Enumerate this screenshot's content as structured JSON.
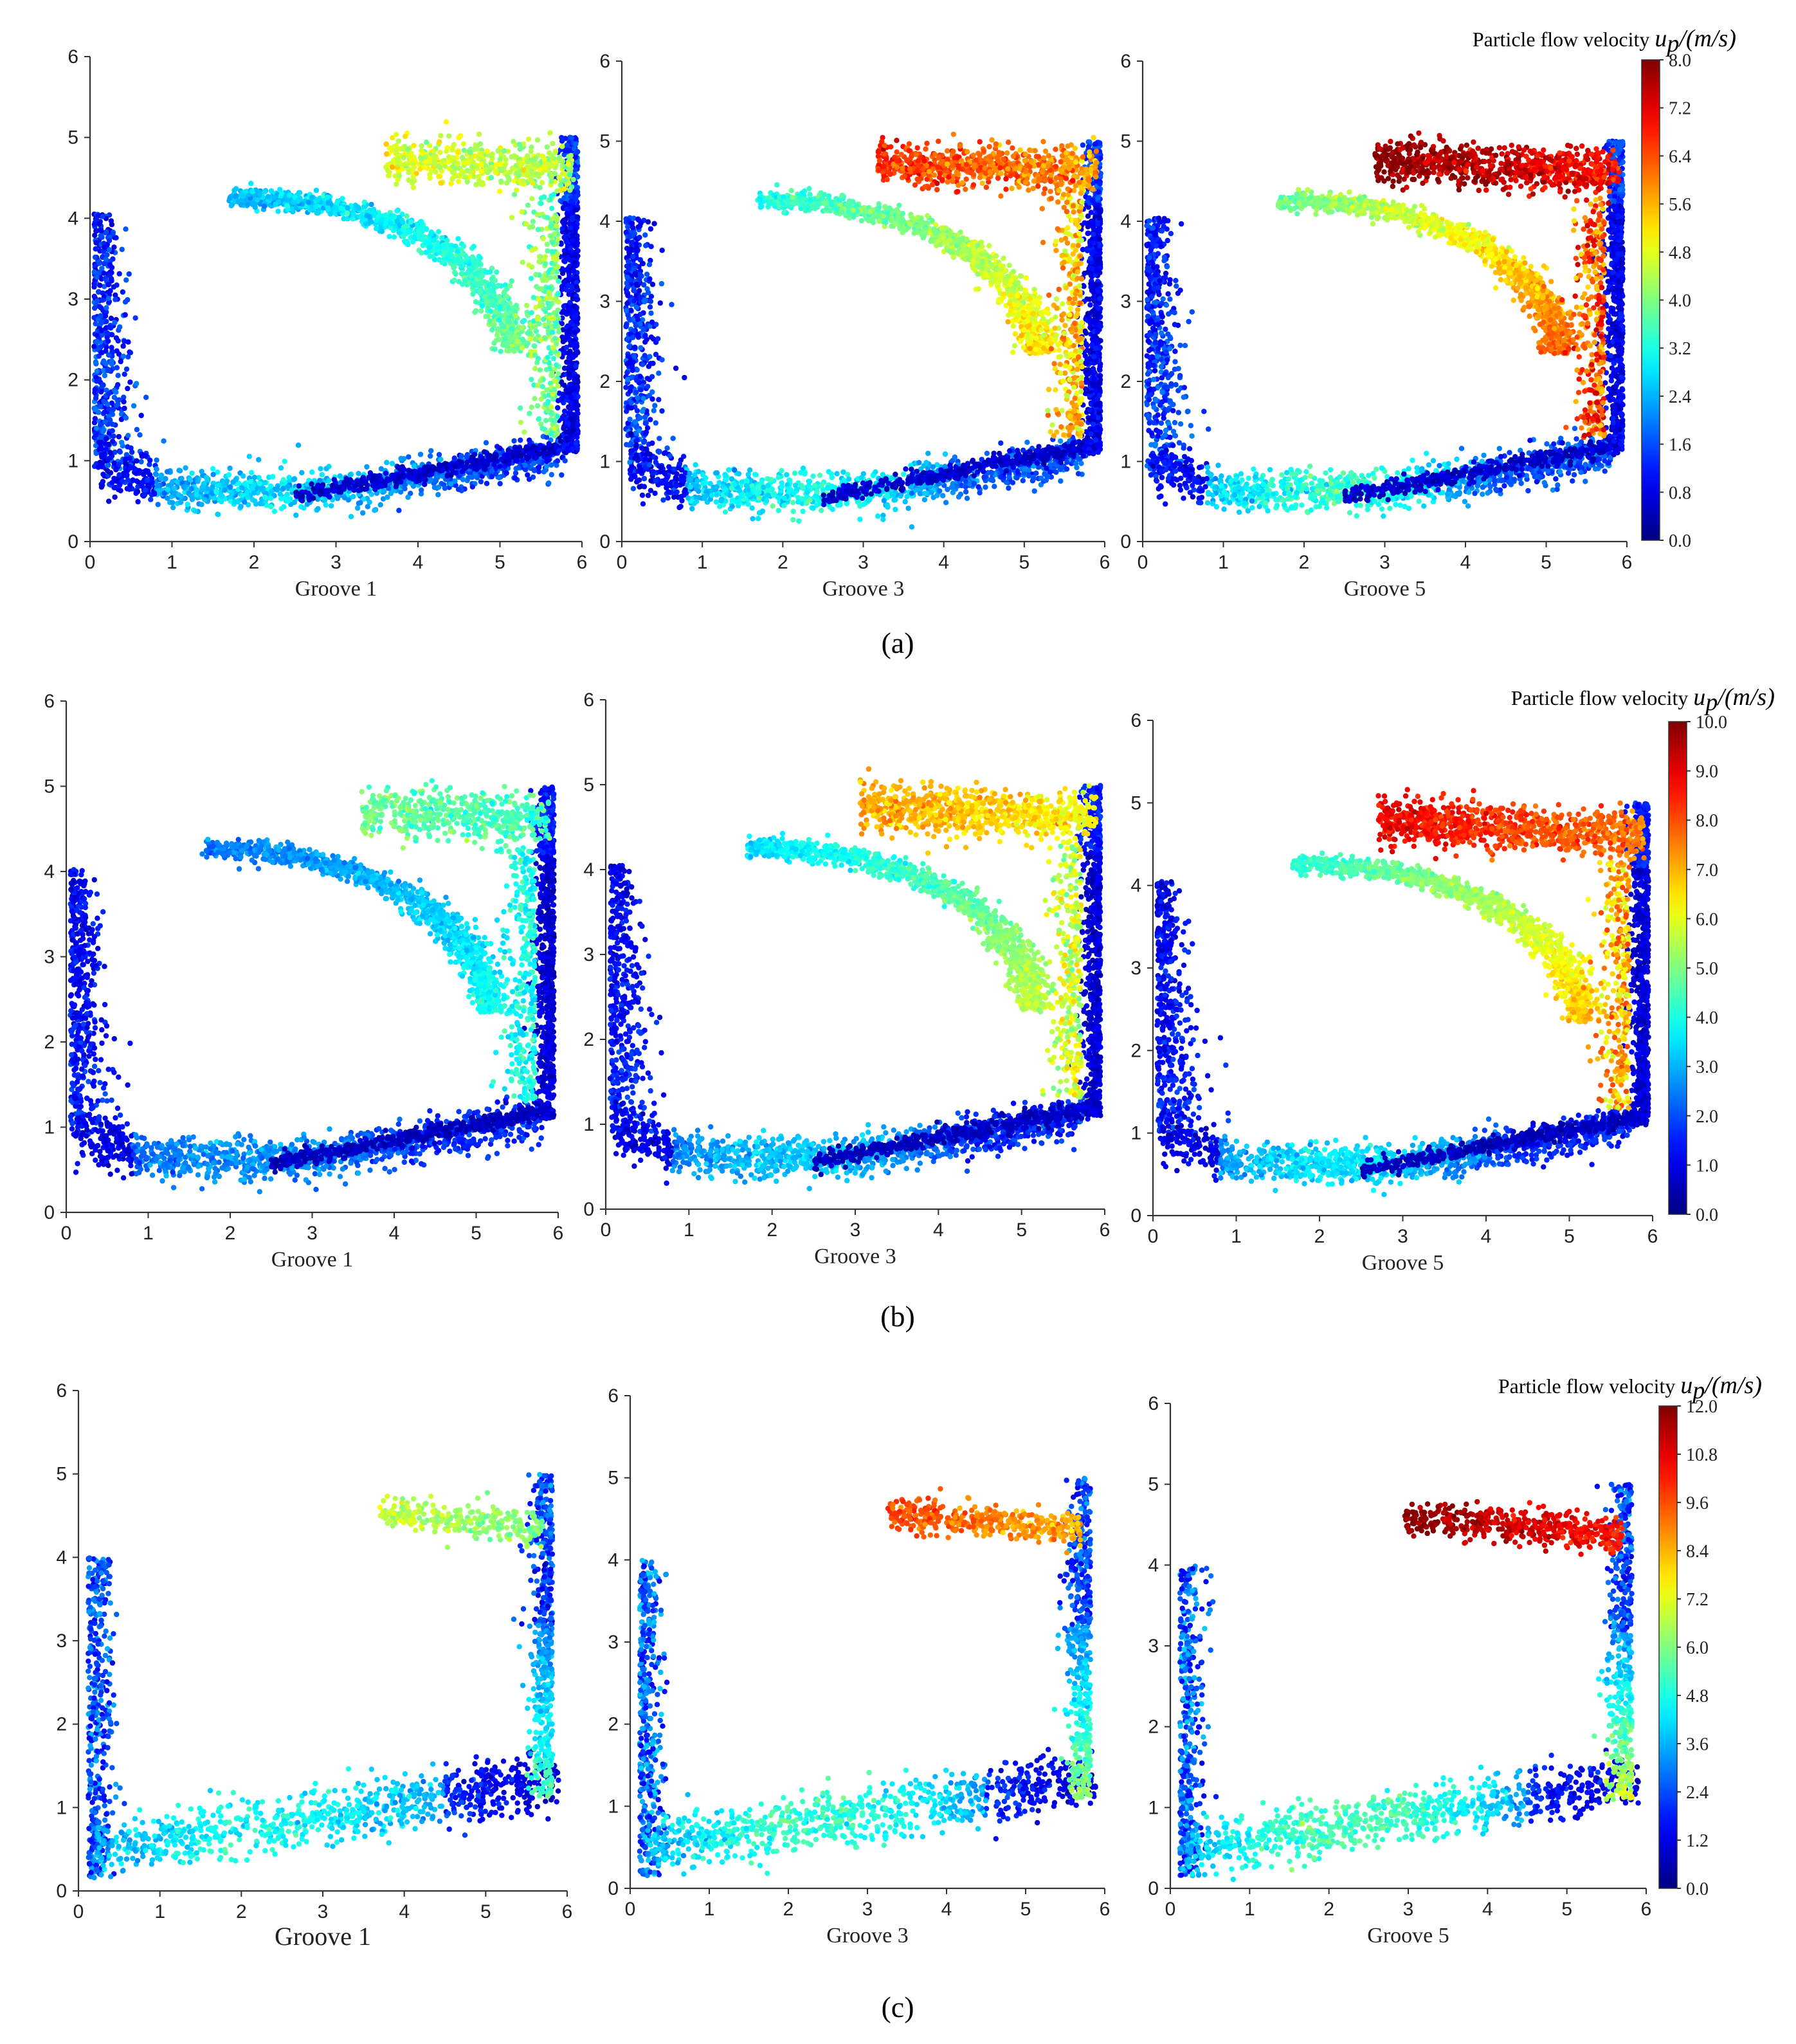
{
  "figure": {
    "panel_labels": [
      "(a)",
      "(b)",
      "(c)"
    ]
  },
  "chart_data": [
    {
      "type": "scatter",
      "row": "a",
      "groove": 1,
      "xlabel": "Groove 1",
      "xlim": [
        0,
        6
      ],
      "ylim": [
        0,
        6
      ],
      "x_ticks": [
        0,
        1,
        2,
        3,
        4,
        5,
        6
      ],
      "y_ticks": [
        0,
        1,
        2,
        3,
        4,
        5,
        6
      ],
      "color_scale": "jet",
      "vmin": 0,
      "vmax": 8,
      "pattern": "loop",
      "intensity": 1.0,
      "colorbar": null
    },
    {
      "type": "scatter",
      "row": "a",
      "groove": 3,
      "xlabel": "Groove 3",
      "xlim": [
        0,
        6
      ],
      "ylim": [
        0,
        6
      ],
      "x_ticks": [
        0,
        1,
        2,
        3,
        4,
        5,
        6
      ],
      "y_ticks": [
        0,
        1,
        2,
        3,
        4,
        5,
        6
      ],
      "color_scale": "jet",
      "vmin": 0,
      "vmax": 8,
      "pattern": "loop",
      "intensity": 1.35,
      "colorbar": null
    },
    {
      "type": "scatter",
      "row": "a",
      "groove": 5,
      "xlabel": "Groove 5",
      "xlim": [
        0,
        6
      ],
      "ylim": [
        0,
        6
      ],
      "x_ticks": [
        0,
        1,
        2,
        3,
        4,
        5,
        6
      ],
      "y_ticks": [
        0,
        1,
        2,
        3,
        4,
        5,
        6
      ],
      "color_scale": "jet",
      "vmin": 0,
      "vmax": 8,
      "pattern": "loop",
      "intensity": 1.6,
      "colorbar": {
        "title": "Particle flow velocity",
        "symbol": "u",
        "subscript": "p",
        "unit": "/(m/s)",
        "ticks": [
          "0.0",
          "0.8",
          "1.6",
          "2.4",
          "3.2",
          "4.0",
          "4.8",
          "5.6",
          "6.4",
          "7.2",
          "8.0"
        ],
        "min": 0,
        "max": 8
      }
    },
    {
      "type": "scatter",
      "row": "b",
      "groove": 1,
      "xlabel": "Groove 1",
      "xlim": [
        0,
        6
      ],
      "ylim": [
        0,
        6
      ],
      "x_ticks": [
        0,
        1,
        2,
        3,
        4,
        5,
        6
      ],
      "y_ticks": [
        0,
        1,
        2,
        3,
        4,
        5,
        6
      ],
      "color_scale": "jet",
      "vmin": 0,
      "vmax": 10,
      "pattern": "loop",
      "intensity": 1.0,
      "colorbar": null
    },
    {
      "type": "scatter",
      "row": "b",
      "groove": 3,
      "xlabel": "Groove 3",
      "xlim": [
        0,
        6
      ],
      "ylim": [
        0,
        6
      ],
      "x_ticks": [
        0,
        1,
        2,
        3,
        4,
        5,
        6
      ],
      "y_ticks": [
        0,
        1,
        2,
        3,
        4,
        5,
        6
      ],
      "color_scale": "jet",
      "vmin": 0,
      "vmax": 10,
      "pattern": "loop",
      "intensity": 1.45,
      "colorbar": null
    },
    {
      "type": "scatter",
      "row": "b",
      "groove": 5,
      "xlabel": "Groove 5",
      "xlim": [
        0,
        6
      ],
      "ylim": [
        0,
        6
      ],
      "x_ticks": [
        0,
        1,
        2,
        3,
        4,
        5,
        6
      ],
      "y_ticks": [
        0,
        1,
        2,
        3,
        4,
        5,
        6
      ],
      "color_scale": "jet",
      "vmin": 0,
      "vmax": 10,
      "pattern": "loop",
      "intensity": 1.75,
      "colorbar": {
        "title": "Particle flow velocity",
        "symbol": "u",
        "subscript": "p",
        "unit": "/(m/s)",
        "ticks": [
          "0.0",
          "1.0",
          "2.0",
          "3.0",
          "4.0",
          "5.0",
          "6.0",
          "7.0",
          "8.0",
          "9.0",
          "10.0"
        ],
        "min": 0,
        "max": 10
      }
    },
    {
      "type": "scatter",
      "row": "c",
      "groove": 1,
      "xlabel": "Groove 1",
      "xlim": [
        0,
        6
      ],
      "ylim": [
        0,
        6
      ],
      "x_ticks": [
        0,
        1,
        2,
        3,
        4,
        5,
        6
      ],
      "y_ticks": [
        0,
        1,
        2,
        3,
        4,
        5,
        6
      ],
      "color_scale": "jet",
      "vmin": 0,
      "vmax": 12,
      "pattern": "open",
      "intensity": 1.0,
      "colorbar": null
    },
    {
      "type": "scatter",
      "row": "c",
      "groove": 3,
      "xlabel": "Groove 3",
      "xlim": [
        0,
        6
      ],
      "ylim": [
        0,
        6
      ],
      "x_ticks": [
        0,
        1,
        2,
        3,
        4,
        5,
        6
      ],
      "y_ticks": [
        0,
        1,
        2,
        3,
        4,
        5,
        6
      ],
      "color_scale": "jet",
      "vmin": 0,
      "vmax": 12,
      "pattern": "open",
      "intensity": 1.4,
      "colorbar": null
    },
    {
      "type": "scatter",
      "row": "c",
      "groove": 5,
      "xlabel": "Groove 5",
      "xlim": [
        0,
        6
      ],
      "ylim": [
        0,
        6
      ],
      "x_ticks": [
        0,
        1,
        2,
        3,
        4,
        5,
        6
      ],
      "y_ticks": [
        0,
        1,
        2,
        3,
        4,
        5,
        6
      ],
      "color_scale": "jet",
      "vmin": 0,
      "vmax": 12,
      "pattern": "open",
      "intensity": 1.7,
      "colorbar": {
        "title": "Particle flow velocity",
        "symbol": "u",
        "subscript": "p",
        "unit": "/(m/s)",
        "ticks": [
          "0.0",
          "1.2",
          "2.4",
          "3.6",
          "4.8",
          "6.0",
          "7.2",
          "8.4",
          "9.6",
          "10.8",
          "12.0"
        ],
        "min": 0,
        "max": 12
      }
    }
  ]
}
